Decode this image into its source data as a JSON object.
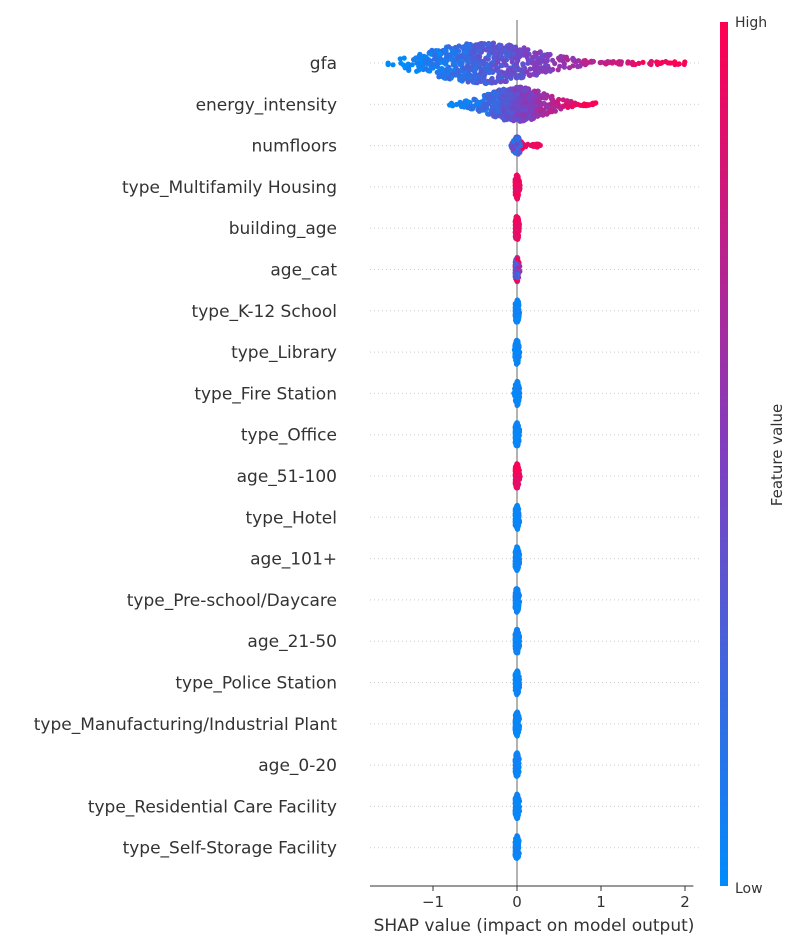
{
  "chart_data": {
    "type": "scatter",
    "subtype": "shap-beeswarm",
    "title": "",
    "xlabel": "SHAP value (impact on model output)",
    "ylabel": "",
    "xlim": [
      -1.75,
      2.1
    ],
    "xticks": [
      {
        "value": -1,
        "label": "−1"
      },
      {
        "value": 0,
        "label": "0"
      },
      {
        "value": 1,
        "label": "1"
      },
      {
        "value": 2,
        "label": "2"
      }
    ],
    "grid": "dotted horizontal row lines",
    "colorbar": {
      "title": "Feature value",
      "high_label": "High",
      "low_label": "Low",
      "low_color": "#008bfb",
      "high_color": "#ff0051",
      "mid_color": "#7f3fc0"
    },
    "features": [
      {
        "name": "gfa",
        "min": -1.6,
        "max": 2.0,
        "peak": -0.4,
        "spread": 0.55,
        "max_halfwidth": 0.5,
        "color_mode": "gradient"
      },
      {
        "name": "energy_intensity",
        "min": -0.85,
        "max": 0.95,
        "peak": 0.0,
        "spread": 0.3,
        "max_halfwidth": 0.42,
        "color_mode": "gradient"
      },
      {
        "name": "numfloors",
        "min": -0.08,
        "max": 0.28,
        "peak": 0.0,
        "spread": 0.04,
        "max_halfwidth": 0.22,
        "color_mode": "mixed-high"
      },
      {
        "name": "type_Multifamily Housing",
        "min": -0.02,
        "max": 0.05,
        "peak": 0.0,
        "spread": 0.02,
        "max_halfwidth": 0.3,
        "color_mode": "high"
      },
      {
        "name": "building_age",
        "min": -0.02,
        "max": 0.04,
        "peak": 0.0,
        "spread": 0.02,
        "max_halfwidth": 0.3,
        "color_mode": "high"
      },
      {
        "name": "age_cat",
        "min": -0.02,
        "max": 0.04,
        "peak": 0.0,
        "spread": 0.02,
        "max_halfwidth": 0.3,
        "color_mode": "mixed"
      },
      {
        "name": "type_K-12 School",
        "min": -0.02,
        "max": 0.03,
        "peak": 0.0,
        "spread": 0.02,
        "max_halfwidth": 0.3,
        "color_mode": "low"
      },
      {
        "name": "type_Library",
        "min": -0.05,
        "max": 0.03,
        "peak": 0.0,
        "spread": 0.02,
        "max_halfwidth": 0.3,
        "color_mode": "low"
      },
      {
        "name": "type_Fire Station",
        "min": -0.05,
        "max": 0.03,
        "peak": 0.0,
        "spread": 0.02,
        "max_halfwidth": 0.3,
        "color_mode": "low"
      },
      {
        "name": "type_Office",
        "min": -0.02,
        "max": 0.03,
        "peak": 0.0,
        "spread": 0.02,
        "max_halfwidth": 0.3,
        "color_mode": "low"
      },
      {
        "name": "age_51-100",
        "min": -0.02,
        "max": 0.04,
        "peak": 0.0,
        "spread": 0.02,
        "max_halfwidth": 0.3,
        "color_mode": "high"
      },
      {
        "name": "type_Hotel",
        "min": -0.02,
        "max": 0.03,
        "peak": 0.0,
        "spread": 0.02,
        "max_halfwidth": 0.3,
        "color_mode": "low"
      },
      {
        "name": "age_101+",
        "min": -0.02,
        "max": 0.03,
        "peak": 0.0,
        "spread": 0.02,
        "max_halfwidth": 0.3,
        "color_mode": "low"
      },
      {
        "name": "type_Pre-school/Daycare",
        "min": -0.02,
        "max": 0.03,
        "peak": 0.0,
        "spread": 0.02,
        "max_halfwidth": 0.3,
        "color_mode": "low"
      },
      {
        "name": "age_21-50",
        "min": -0.02,
        "max": 0.03,
        "peak": 0.0,
        "spread": 0.02,
        "max_halfwidth": 0.3,
        "color_mode": "low"
      },
      {
        "name": "type_Police Station",
        "min": -0.02,
        "max": 0.03,
        "peak": 0.0,
        "spread": 0.02,
        "max_halfwidth": 0.3,
        "color_mode": "low"
      },
      {
        "name": "type_Manufacturing/Industrial Plant",
        "min": -0.02,
        "max": 0.03,
        "peak": 0.0,
        "spread": 0.02,
        "max_halfwidth": 0.3,
        "color_mode": "low"
      },
      {
        "name": "age_0-20",
        "min": -0.02,
        "max": 0.03,
        "peak": 0.0,
        "spread": 0.02,
        "max_halfwidth": 0.3,
        "color_mode": "low"
      },
      {
        "name": "type_Residential Care Facility",
        "min": -0.02,
        "max": 0.03,
        "peak": 0.0,
        "spread": 0.02,
        "max_halfwidth": 0.3,
        "color_mode": "low"
      },
      {
        "name": "type_Self-Storage Facility",
        "min": -0.02,
        "max": 0.03,
        "peak": 0.0,
        "spread": 0.02,
        "max_halfwidth": 0.3,
        "color_mode": "low"
      }
    ]
  }
}
